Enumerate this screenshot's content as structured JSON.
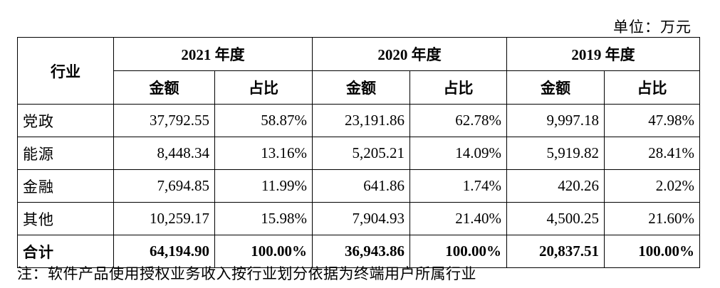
{
  "unit_label": "单位：万元",
  "table": {
    "industry_header": "行业",
    "years": [
      "2021 年度",
      "2020 年度",
      "2019 年度"
    ],
    "sub_headers": {
      "amount": "金额",
      "ratio": "占比"
    },
    "rows": [
      {
        "name": "党政",
        "cells": [
          "37,792.55",
          "58.87%",
          "23,191.86",
          "62.78%",
          "9,997.18",
          "47.98%"
        ]
      },
      {
        "name": "能源",
        "cells": [
          "8,448.34",
          "13.16%",
          "5,205.21",
          "14.09%",
          "5,919.82",
          "28.41%"
        ]
      },
      {
        "name": "金融",
        "cells": [
          "7,694.85",
          "11.99%",
          "641.86",
          "1.74%",
          "420.26",
          "2.02%"
        ]
      },
      {
        "name": "其他",
        "cells": [
          "10,259.17",
          "15.98%",
          "7,904.93",
          "21.40%",
          "4,500.25",
          "21.60%"
        ]
      }
    ],
    "total": {
      "name": "合计",
      "cells": [
        "64,194.90",
        "100.00%",
        "36,943.86",
        "100.00%",
        "20,837.51",
        "100.00%"
      ]
    }
  },
  "note": "注：软件产品使用授权业务收入按行业划分依据为终端用户所属行业"
}
